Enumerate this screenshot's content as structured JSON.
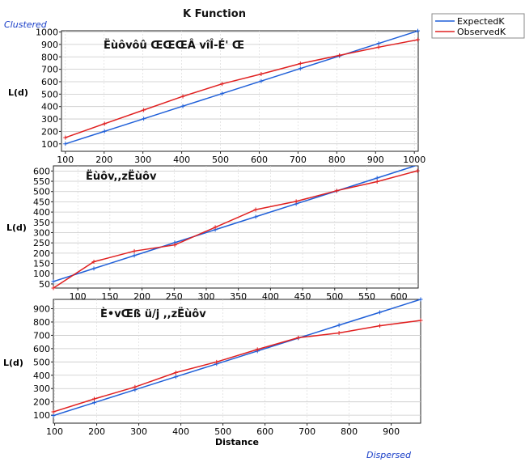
{
  "page": {
    "title": "K Function",
    "label_top": "Clustered",
    "label_bottom": "Dispersed"
  },
  "legend": {
    "position": "top-right",
    "items": [
      {
        "name": "ExpectedK",
        "color": "#1f5fd8"
      },
      {
        "name": "ObservedK",
        "color": "#e02020"
      }
    ]
  },
  "chart_data": [
    {
      "type": "line",
      "title": "Ëùôvôû ŒŒŒÂ vîÎ-É' Œ",
      "ylabel": "L(d)",
      "xlabel": "",
      "xlim": [
        90,
        1010
      ],
      "ylim": [
        40,
        1010
      ],
      "xticks": [
        100,
        200,
        300,
        400,
        500,
        600,
        700,
        800,
        900,
        1000
      ],
      "yticks": [
        100,
        200,
        300,
        400,
        500,
        600,
        700,
        800,
        900,
        1000
      ],
      "grid": true,
      "series": [
        {
          "name": "ExpectedK",
          "color": "#1f5fd8",
          "x": [
            100,
            201,
            302,
            403,
            504,
            605,
            706,
            807,
            908,
            1009
          ],
          "y": [
            100,
            201,
            302,
            403,
            504,
            605,
            706,
            807,
            908,
            1009
          ]
        },
        {
          "name": "ObservedK",
          "color": "#e02020",
          "x": [
            100,
            201,
            302,
            403,
            504,
            605,
            706,
            807,
            908,
            1009
          ],
          "y": [
            150,
            262,
            372,
            482,
            582,
            662,
            746,
            812,
            878,
            938
          ]
        }
      ]
    },
    {
      "type": "line",
      "title": "Ëùôv,,zËùôv",
      "ylabel": "L(d)",
      "xlabel": "",
      "xlim": [
        62,
        630
      ],
      "ylim": [
        30,
        625
      ],
      "xticks": [
        100,
        150,
        200,
        250,
        300,
        350,
        400,
        450,
        500,
        550,
        600
      ],
      "yticks": [
        50,
        100,
        150,
        200,
        250,
        300,
        350,
        400,
        450,
        500,
        550,
        600
      ],
      "grid": true,
      "series": [
        {
          "name": "ExpectedK",
          "color": "#1f5fd8",
          "x": [
            62,
            125,
            188,
            251,
            314,
            377,
            440,
            503,
            566,
            629
          ],
          "y": [
            62,
            125,
            188,
            251,
            314,
            377,
            440,
            503,
            566,
            629
          ]
        },
        {
          "name": "ObservedK",
          "color": "#e02020",
          "x": [
            62,
            125,
            188,
            251,
            314,
            377,
            440,
            503,
            566,
            629
          ],
          "y": [
            30,
            158,
            210,
            240,
            326,
            412,
            452,
            504,
            548,
            601
          ]
        }
      ]
    },
    {
      "type": "line",
      "title": "È•vŒß ü/j ,,zËùôv",
      "ylabel": "L(d)",
      "xlabel": "Distance",
      "xlim": [
        97,
        970
      ],
      "ylim": [
        40,
        970
      ],
      "xticks": [
        100,
        200,
        300,
        400,
        500,
        600,
        700,
        800,
        900
      ],
      "yticks": [
        100,
        200,
        300,
        400,
        500,
        600,
        700,
        800,
        900
      ],
      "grid": true,
      "series": [
        {
          "name": "ExpectedK",
          "color": "#1f5fd8",
          "x": [
            97,
            194,
            291,
            388,
            485,
            582,
            679,
            776,
            873,
            970
          ],
          "y": [
            97,
            194,
            291,
            388,
            485,
            582,
            679,
            776,
            873,
            970
          ]
        },
        {
          "name": "ObservedK",
          "color": "#e02020",
          "x": [
            97,
            194,
            291,
            388,
            485,
            582,
            679,
            776,
            873,
            970
          ],
          "y": [
            125,
            222,
            312,
            420,
            500,
            594,
            682,
            718,
            772,
            812
          ]
        }
      ]
    }
  ]
}
